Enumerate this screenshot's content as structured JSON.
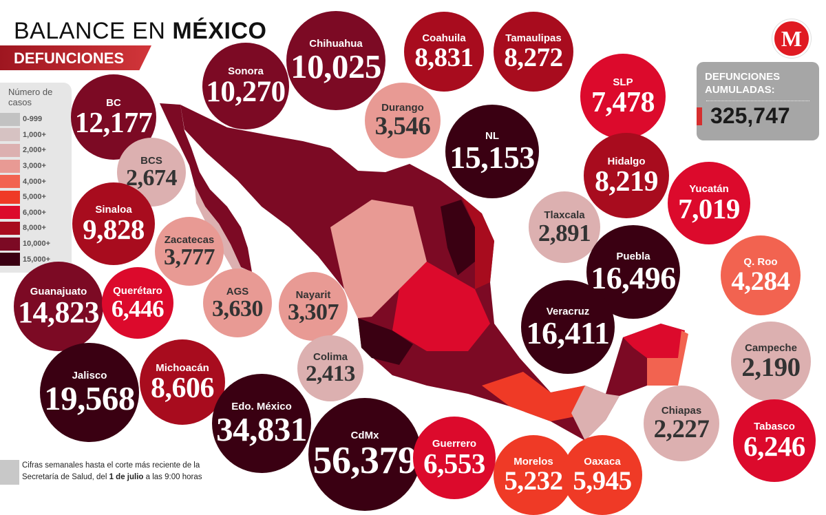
{
  "header": {
    "title_part1": "BALANCE EN ",
    "title_part2": "MÉXICO",
    "subtitle": "DEFUNCIONES"
  },
  "legend": {
    "title": "Número de casos",
    "bins": [
      {
        "label": "0-999",
        "color": "#c2c2c2"
      },
      {
        "label": "1,000+",
        "color": "#d6c2c2"
      },
      {
        "label": "2,000+",
        "color": "#dcb0b0"
      },
      {
        "label": "3,000+",
        "color": "#e89a94"
      },
      {
        "label": "4,000+",
        "color": "#f26350"
      },
      {
        "label": "5,000+",
        "color": "#ef3a26"
      },
      {
        "label": "6,000+",
        "color": "#dc0a2c"
      },
      {
        "label": "8,000+",
        "color": "#a80c1e"
      },
      {
        "label": "10,000+",
        "color": "#7c0a24"
      },
      {
        "label": "15,000+",
        "color": "#3a0012"
      }
    ]
  },
  "total": {
    "label": "DEFUNCIONES AUMULADAS:",
    "value": "325,747"
  },
  "logo": "M",
  "note": {
    "line1": "Cifras semanales hasta el corte más reciente de la",
    "line2_a": "Secretaría de Salud, del ",
    "line2_b": "1 de julio",
    "line2_c": " a las 9:00 horas"
  },
  "states": [
    {
      "name": "BC",
      "value": "12,177",
      "bin": 8
    },
    {
      "name": "Sonora",
      "value": "10,270",
      "bin": 8
    },
    {
      "name": "Chihuahua",
      "value": "10,025",
      "bin": 8
    },
    {
      "name": "Coahuila",
      "value": "8,831",
      "bin": 7
    },
    {
      "name": "Tamaulipas",
      "value": "8,272",
      "bin": 7
    },
    {
      "name": "SLP",
      "value": "7,478",
      "bin": 6
    },
    {
      "name": "Durango",
      "value": "3,546",
      "bin": 3
    },
    {
      "name": "NL",
      "value": "15,153",
      "bin": 9
    },
    {
      "name": "Hidalgo",
      "value": "8,219",
      "bin": 7
    },
    {
      "name": "Yucatán",
      "value": "7,019",
      "bin": 6
    },
    {
      "name": "BCS",
      "value": "2,674",
      "bin": 2
    },
    {
      "name": "Tlaxcala",
      "value": "2,891",
      "bin": 2
    },
    {
      "name": "Sinaloa",
      "value": "9,828",
      "bin": 7
    },
    {
      "name": "Zacatecas",
      "value": "3,777",
      "bin": 3
    },
    {
      "name": "Puebla",
      "value": "16,496",
      "bin": 9
    },
    {
      "name": "Q. Roo",
      "value": "4,284",
      "bin": 4
    },
    {
      "name": "Guanajuato",
      "value": "14,823",
      "bin": 8
    },
    {
      "name": "Querétaro",
      "value": "6,446",
      "bin": 6
    },
    {
      "name": "AGS",
      "value": "3,630",
      "bin": 3
    },
    {
      "name": "Nayarit",
      "value": "3,307",
      "bin": 3
    },
    {
      "name": "Veracruz",
      "value": "16,411",
      "bin": 9
    },
    {
      "name": "Campeche",
      "value": "2,190",
      "bin": 2
    },
    {
      "name": "Colima",
      "value": "2,413",
      "bin": 2
    },
    {
      "name": "Jalisco",
      "value": "19,568",
      "bin": 9
    },
    {
      "name": "Michoacán",
      "value": "8,606",
      "bin": 7
    },
    {
      "name": "Edo. México",
      "value": "34,831",
      "bin": 9
    },
    {
      "name": "CdMx",
      "value": "56,379",
      "bin": 9
    },
    {
      "name": "Guerrero",
      "value": "6,553",
      "bin": 6
    },
    {
      "name": "Morelos",
      "value": "5,232",
      "bin": 5
    },
    {
      "name": "Oaxaca",
      "value": "5,945",
      "bin": 5
    },
    {
      "name": "Chiapas",
      "value": "2,227",
      "bin": 2
    },
    {
      "name": "Tabasco",
      "value": "6,246",
      "bin": 6
    }
  ]
}
